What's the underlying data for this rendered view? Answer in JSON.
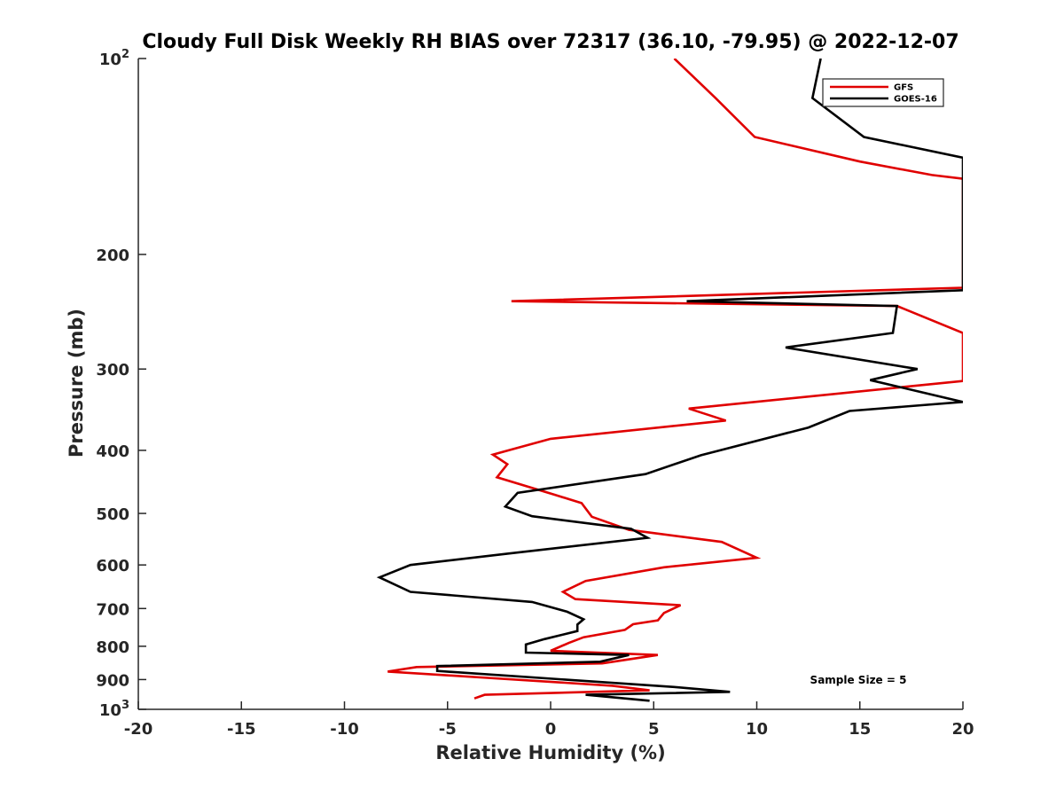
{
  "chart_data": {
    "type": "line",
    "title": "Cloudy Full Disk Weekly RH BIAS over 72317 (36.10, -79.95) @ 2022-12-07",
    "xlabel": "Relative Humidity (%)",
    "ylabel": "Pressure (mb)",
    "xlim": [
      -20,
      20
    ],
    "ylim": [
      100,
      1000
    ],
    "y_scale": "log",
    "y_reversed": true,
    "grid": false,
    "legend_position": "top-right",
    "x_ticks": [
      "-20",
      "-15",
      "-10",
      "-5",
      "0",
      "5",
      "10",
      "15",
      "20"
    ],
    "y_ticks": [
      {
        "value": 100,
        "base": "10",
        "exp": "2"
      },
      {
        "value": 200,
        "label": "200"
      },
      {
        "value": 300,
        "label": "300"
      },
      {
        "value": 400,
        "label": "400"
      },
      {
        "value": 500,
        "label": "500"
      },
      {
        "value": 600,
        "label": "600"
      },
      {
        "value": 700,
        "label": "700"
      },
      {
        "value": 800,
        "label": "800"
      },
      {
        "value": 900,
        "label": "900"
      },
      {
        "value": 1000,
        "base": "10",
        "exp": "3"
      }
    ],
    "annotation": "Sample Size = 5",
    "series": [
      {
        "name": "GFS",
        "color": "#e00000",
        "points": [
          [
            6.0,
            100
          ],
          [
            8.0,
            115
          ],
          [
            9.9,
            132
          ],
          [
            15.0,
            144
          ],
          [
            18.5,
            151
          ],
          [
            20.0,
            153
          ],
          [
            20.0,
            225
          ],
          [
            -1.9,
            236
          ],
          [
            16.8,
            240
          ],
          [
            20.0,
            264
          ],
          [
            20.0,
            313
          ],
          [
            6.7,
            345
          ],
          [
            8.5,
            360
          ],
          [
            0.0,
            384
          ],
          [
            -2.8,
            406
          ],
          [
            -2.1,
            420
          ],
          [
            -2.6,
            440
          ],
          [
            0.2,
            468
          ],
          [
            1.5,
            482
          ],
          [
            2.0,
            506
          ],
          [
            3.8,
            530
          ],
          [
            8.3,
            553
          ],
          [
            10.0,
            585
          ],
          [
            5.5,
            605
          ],
          [
            1.7,
            635
          ],
          [
            0.6,
            660
          ],
          [
            1.2,
            677
          ],
          [
            6.3,
            692
          ],
          [
            5.5,
            711
          ],
          [
            5.2,
            730
          ],
          [
            4.0,
            740
          ],
          [
            3.6,
            755
          ],
          [
            1.6,
            775
          ],
          [
            0.9,
            790
          ],
          [
            0.0,
            813
          ],
          [
            5.2,
            825
          ],
          [
            2.5,
            850
          ],
          [
            -6.5,
            861
          ],
          [
            -7.9,
            875
          ],
          [
            3.0,
            920
          ],
          [
            4.8,
            935
          ],
          [
            -3.2,
            950
          ],
          [
            -3.7,
            962
          ]
        ]
      },
      {
        "name": "GOES-16",
        "color": "#000000",
        "points": [
          [
            13.1,
            100
          ],
          [
            12.7,
            115
          ],
          [
            15.2,
            132
          ],
          [
            20.0,
            142
          ],
          [
            20.0,
            227
          ],
          [
            6.6,
            236
          ],
          [
            16.8,
            240
          ],
          [
            16.6,
            264
          ],
          [
            11.4,
            278
          ],
          [
            17.8,
            300
          ],
          [
            15.5,
            312
          ],
          [
            20.0,
            337
          ],
          [
            14.5,
            348
          ],
          [
            12.5,
            369
          ],
          [
            7.3,
            407
          ],
          [
            4.6,
            435
          ],
          [
            -1.6,
            465
          ],
          [
            -2.2,
            488
          ],
          [
            -0.9,
            505
          ],
          [
            3.9,
            528
          ],
          [
            4.7,
            545
          ],
          [
            -2.0,
            576
          ],
          [
            -6.8,
            600
          ],
          [
            -8.3,
            627
          ],
          [
            -6.8,
            660
          ],
          [
            -0.9,
            684
          ],
          [
            0.8,
            708
          ],
          [
            1.6,
            727
          ],
          [
            1.3,
            741
          ],
          [
            1.3,
            758
          ],
          [
            -0.3,
            780
          ],
          [
            -1.2,
            795
          ],
          [
            -1.2,
            818
          ],
          [
            3.8,
            825
          ],
          [
            2.4,
            845
          ],
          [
            -5.5,
            858
          ],
          [
            -5.5,
            873
          ],
          [
            6.0,
            924
          ],
          [
            8.7,
            940
          ],
          [
            1.7,
            950
          ],
          [
            4.8,
            970
          ]
        ]
      }
    ]
  }
}
